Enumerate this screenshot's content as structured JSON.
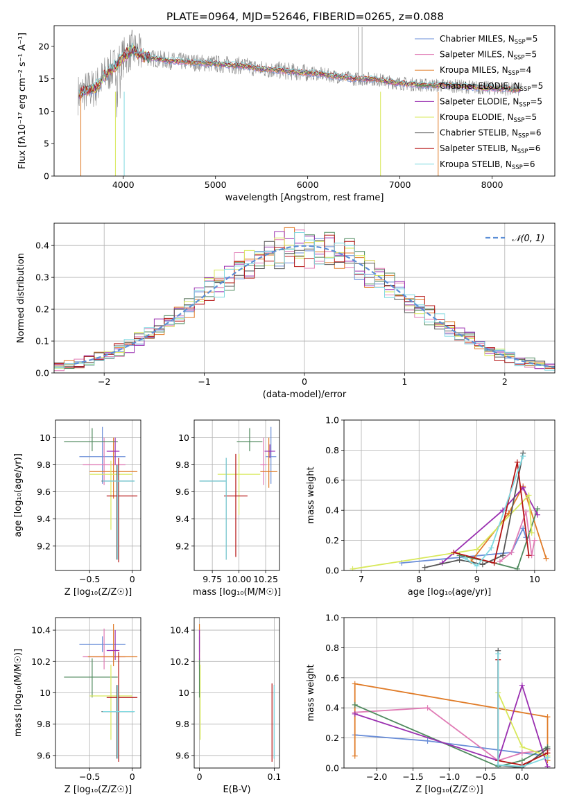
{
  "figure": {
    "title": "PLATE=0964, MJD=52646, FIBERID=0265, z=0.088"
  },
  "colors": {
    "Chabrier MILES": "#6a8ed8",
    "Salpeter MILES": "#e07bb5",
    "Kroupa MILES": "#e07b27",
    "Chabrier ELODIE": "#4f8a5e",
    "Salpeter ELODIE": "#9a2fb0",
    "Kroupa ELODIE": "#d8e85a",
    "Chabrier STELIB": "#555555",
    "Salpeter STELIB": "#b51414",
    "Kroupa STELIB": "#7fd8e0",
    "data": "#888888",
    "normal_curve": "#5b8ed6",
    "grid": "#b0b0b0"
  },
  "chart_data": [
    {
      "id": "spectrum",
      "type": "line",
      "title": "PLATE=0964, MJD=52646, FIBERID=0265, z=0.088",
      "xlabel": "wavelength [Angstrom, rest frame]",
      "ylabel": "Flux [fλ10⁻¹⁷ erg cm⁻² s⁻¹ A⁻¹]",
      "xlim": [
        3250,
        8680
      ],
      "ylim": [
        0,
        23.2
      ],
      "xticks": [
        4000,
        5000,
        6000,
        7000,
        8000
      ],
      "yticks": [
        0,
        5,
        10,
        15,
        20
      ],
      "grid": false,
      "legend_position": "top-right",
      "legend": [
        {
          "series": "Chabrier MILES",
          "label": "Chabrier MILES, N",
          "sub": "SSP",
          "tail": "=5"
        },
        {
          "series": "Salpeter MILES",
          "label": "Salpeter MILES, N",
          "sub": "SSP",
          "tail": "=5"
        },
        {
          "series": "Kroupa MILES",
          "label": "Kroupa MILES, N",
          "sub": "SSP",
          "tail": "=4"
        },
        {
          "series": "Chabrier ELODIE",
          "label": "Chabrier ELODIE, N",
          "sub": "SSP",
          "tail": "=5"
        },
        {
          "series": "Salpeter ELODIE",
          "label": "Salpeter ELODIE, N",
          "sub": "SSP",
          "tail": "=5"
        },
        {
          "series": "Kroupa ELODIE",
          "label": "Kroupa ELODIE, N",
          "sub": "SSP",
          "tail": "=5"
        },
        {
          "series": "Chabrier STELIB",
          "label": "Chabrier STELIB, N",
          "sub": "SSP",
          "tail": "=6"
        },
        {
          "series": "Salpeter STELIB",
          "label": "Salpeter STELIB, N",
          "sub": "SSP",
          "tail": "=6"
        },
        {
          "series": "Kroupa STELIB",
          "label": "Kroupa STELIB, N",
          "sub": "SSP",
          "tail": "=6"
        }
      ],
      "continuum_x": [
        3500,
        3600,
        3700,
        3800,
        3900,
        4000,
        4100,
        4200,
        4300,
        4500,
        4700,
        4900,
        5100,
        5300,
        5500,
        5700,
        5900,
        6100,
        6300,
        6500,
        6700,
        6900,
        7100,
        7300,
        7500,
        7700,
        7900,
        8100,
        8300
      ],
      "continuum_y": [
        12.5,
        13.2,
        13.6,
        15.5,
        16.8,
        18.3,
        19.5,
        18.6,
        18.2,
        17.8,
        17.6,
        17.4,
        17.2,
        17.0,
        16.5,
        16.3,
        16.0,
        15.8,
        15.4,
        15.0,
        15.0,
        14.5,
        14.2,
        14.0,
        14.0,
        13.8,
        13.6,
        13.5,
        13.3
      ]
    },
    {
      "id": "residual-histogram",
      "type": "bar",
      "xlabel": "(data-model)/error",
      "ylabel": "Normed distribution",
      "xlim": [
        -2.5,
        2.5
      ],
      "ylim": [
        0,
        0.47
      ],
      "xticks": [
        -2,
        -1,
        0,
        1,
        2
      ],
      "yticks": [
        0.0,
        0.1,
        0.2,
        0.3,
        0.4
      ],
      "grid": true,
      "legend_position": "top-right",
      "legend": [
        {
          "label": "𝒩(0, 1)"
        }
      ],
      "bin_width": 0.1,
      "x_start": -2.5
    },
    {
      "id": "age-vs-Z",
      "type": "scatter",
      "xlabel": "Z [log₁₀(Z/Z☉)]",
      "ylabel": "age [log₁₀(age/yr)]",
      "xlim": [
        -0.9,
        0.1
      ],
      "ylim": [
        9.02,
        10.13
      ],
      "xticks": [
        -0.5,
        0.0
      ],
      "yticks": [
        9.2,
        9.4,
        9.6,
        9.8,
        10.0
      ],
      "grid": true,
      "points": [
        {
          "series": "Chabrier MILES",
          "x": -0.35,
          "xerr": [
            0.27,
            0.27
          ],
          "y": 9.86,
          "yerr": [
            0.2,
            0.22
          ]
        },
        {
          "series": "Salpeter MILES",
          "x": -0.33,
          "xerr": [
            0.25,
            0.25
          ],
          "y": 9.8,
          "yerr": [
            0.15,
            0.2
          ]
        },
        {
          "series": "Kroupa MILES",
          "x": -0.22,
          "xerr": [
            0.28,
            0.28
          ],
          "y": 9.75,
          "yerr": [
            0.2,
            0.25
          ]
        },
        {
          "series": "Chabrier ELODIE",
          "x": -0.47,
          "xerr": [
            0.33,
            0.3
          ],
          "y": 9.97,
          "yerr": [
            0.07,
            0.1
          ]
        },
        {
          "series": "Salpeter ELODIE",
          "x": -0.2,
          "xerr": [
            0.1,
            0.05
          ],
          "y": 9.9,
          "yerr": [
            0.1,
            0.1
          ]
        },
        {
          "series": "Kroupa ELODIE",
          "x": -0.25,
          "xerr": [
            0.25,
            0.25
          ],
          "y": 9.73,
          "yerr": [
            0.41,
            0.1
          ]
        },
        {
          "series": "Chabrier STELIB",
          "x": -0.18,
          "xerr": [
            0.18,
            0.2
          ],
          "y": 9.68,
          "yerr": [
            0.58,
            0.12
          ]
        },
        {
          "series": "Salpeter STELIB",
          "x": -0.16,
          "xerr": [
            0.14,
            0.22
          ],
          "y": 9.57,
          "yerr": [
            0.49,
            0.28
          ]
        },
        {
          "series": "Kroupa STELIB",
          "x": -0.17,
          "xerr": [
            0.18,
            0.2
          ],
          "y": 9.68,
          "yerr": [
            0.58,
            0.12
          ]
        }
      ]
    },
    {
      "id": "age-vs-mass",
      "type": "scatter",
      "xlabel": "mass [log₁₀(M/M☉)]",
      "ylabel": "",
      "xlim": [
        9.58,
        10.38
      ],
      "ylim": [
        9.02,
        10.13
      ],
      "xticks": [
        9.75,
        10.0,
        10.25
      ],
      "xticklabels": [
        "9.75",
        "10.00",
        "10.25"
      ],
      "yticks": [
        9.2,
        9.4,
        9.6,
        9.8,
        10.0
      ],
      "grid": true,
      "points": [
        {
          "series": "Chabrier MILES",
          "x": 10.3,
          "xerr": [
            0.05,
            0.05
          ],
          "y": 9.86,
          "yerr": [
            0.2,
            0.22
          ]
        },
        {
          "series": "Salpeter MILES",
          "x": 10.23,
          "xerr": [
            0.03,
            0.03
          ],
          "y": 9.8,
          "yerr": [
            0.15,
            0.2
          ]
        },
        {
          "series": "Kroupa MILES",
          "x": 10.28,
          "xerr": [
            0.08,
            0.08
          ],
          "y": 9.75,
          "yerr": [
            0.12,
            0.25
          ]
        },
        {
          "series": "Chabrier ELODIE",
          "x": 10.1,
          "xerr": [
            0.12,
            0.12
          ],
          "y": 9.97,
          "yerr": [
            0.07,
            0.1
          ]
        },
        {
          "series": "Salpeter ELODIE",
          "x": 10.29,
          "xerr": [
            0.05,
            0.05
          ],
          "y": 9.9,
          "yerr": [
            0.05,
            0.05
          ]
        },
        {
          "series": "Kroupa ELODIE",
          "x": 10.0,
          "xerr": [
            0.2,
            0.2
          ],
          "y": 9.73,
          "yerr": [
            0.3,
            0.15
          ]
        },
        {
          "series": "Chabrier STELIB",
          "x": 9.88,
          "xerr": [
            0.25,
            0.0
          ],
          "y": 9.68,
          "yerr": [
            0.58,
            0.17
          ]
        },
        {
          "series": "Salpeter STELIB",
          "x": 9.97,
          "xerr": [
            0.11,
            0.11
          ],
          "y": 9.57,
          "yerr": [
            0.45,
            0.31
          ]
        },
        {
          "series": "Kroupa STELIB",
          "x": 9.88,
          "xerr": [
            0.25,
            0.0
          ],
          "y": 9.68,
          "yerr": [
            0.58,
            0.17
          ]
        }
      ]
    },
    {
      "id": "weight-vs-age",
      "type": "line",
      "xlabel": "age [log₁₀(age/yr)]",
      "ylabel": "mass weight",
      "xlim": [
        6.7,
        10.35
      ],
      "ylim": [
        0,
        1.0
      ],
      "xticks": [
        7,
        8,
        9,
        10
      ],
      "yticks": [
        0.0,
        0.2,
        0.4,
        0.6,
        0.8,
        1.0
      ],
      "grid": true,
      "series": [
        {
          "name": "Chabrier MILES",
          "x": [
            7.7,
            9.6,
            9.8,
            9.85
          ],
          "y": [
            0.05,
            0.12,
            0.28,
            0.22
          ]
        },
        {
          "name": "Salpeter MILES",
          "x": [
            9.4,
            9.6,
            9.85,
            9.95,
            10.0
          ],
          "y": [
            0.06,
            0.12,
            0.39,
            0.1,
            0.2
          ]
        },
        {
          "name": "Kroupa MILES",
          "x": [
            8.9,
            9.55,
            9.8,
            10.2
          ],
          "y": [
            0.06,
            0.38,
            0.56,
            0.08
          ]
        },
        {
          "name": "Chabrier ELODIE",
          "x": [
            8.7,
            9.3,
            9.7,
            10.05
          ],
          "y": [
            0.1,
            0.05,
            0.01,
            0.41
          ]
        },
        {
          "name": "Salpeter ELODIE",
          "x": [
            8.4,
            9.45,
            9.8,
            10.05
          ],
          "y": [
            0.05,
            0.4,
            0.55,
            0.37
          ]
        },
        {
          "name": "Kroupa ELODIE",
          "x": [
            6.85,
            9.0,
            9.9,
            9.95
          ],
          "y": [
            0.01,
            0.14,
            0.5,
            0.25
          ]
        },
        {
          "name": "Chabrier STELIB",
          "x": [
            8.1,
            8.7,
            9.1,
            9.45,
            9.8
          ],
          "y": [
            0.02,
            0.07,
            0.04,
            0.1,
            0.78
          ]
        },
        {
          "name": "Salpeter STELIB",
          "x": [
            8.6,
            9.3,
            9.7,
            9.9
          ],
          "y": [
            0.12,
            0.05,
            0.72,
            0.1
          ]
        },
        {
          "name": "Kroupa STELIB",
          "x": [
            8.8,
            9.0,
            9.25,
            9.8
          ],
          "y": [
            0.08,
            0.03,
            0.15,
            0.76
          ]
        }
      ]
    },
    {
      "id": "mass-vs-Z",
      "type": "scatter",
      "xlabel": "Z [log₁₀(Z/Z☉)]",
      "ylabel": "mass [log₁₀(M/M☉)]",
      "xlim": [
        -0.9,
        0.1
      ],
      "ylim": [
        9.52,
        10.48
      ],
      "xticks": [
        -0.5,
        0.0
      ],
      "yticks": [
        9.6,
        9.8,
        10.0,
        10.2,
        10.4
      ],
      "grid": true,
      "points": [
        {
          "series": "Chabrier MILES",
          "x": -0.35,
          "xerr": [
            0.27,
            0.27
          ],
          "y": 10.31,
          "yerr": [
            0.05,
            0.05
          ]
        },
        {
          "series": "Salpeter MILES",
          "x": -0.33,
          "xerr": [
            0.25,
            0.25
          ],
          "y": 10.23,
          "yerr": [
            0.08,
            0.18
          ]
        },
        {
          "series": "Kroupa MILES",
          "x": -0.22,
          "xerr": [
            0.3,
            0.28
          ],
          "y": 10.23,
          "yerr": [
            0.06,
            0.21
          ]
        },
        {
          "series": "Chabrier ELODIE",
          "x": -0.47,
          "xerr": [
            0.33,
            0.3
          ],
          "y": 10.1,
          "yerr": [
            0.13,
            0.12
          ]
        },
        {
          "series": "Salpeter ELODIE",
          "x": -0.2,
          "xerr": [
            0.1,
            0.05
          ],
          "y": 10.27,
          "yerr": [
            0.06,
            0.13
          ]
        },
        {
          "series": "Kroupa ELODIE",
          "x": -0.25,
          "xerr": [
            0.25,
            0.25
          ],
          "y": 9.98,
          "yerr": [
            0.28,
            0.2
          ]
        },
        {
          "series": "Chabrier STELIB",
          "x": -0.18,
          "xerr": [
            0.18,
            0.2
          ],
          "y": 9.88,
          "yerr": [
            0.3,
            0.17
          ]
        },
        {
          "series": "Salpeter STELIB",
          "x": -0.16,
          "xerr": [
            0.14,
            0.22
          ],
          "y": 9.97,
          "yerr": [
            0.41,
            0.29
          ]
        },
        {
          "series": "Kroupa STELIB",
          "x": -0.17,
          "xerr": [
            0.18,
            0.2
          ],
          "y": 9.88,
          "yerr": [
            0.3,
            0.17
          ]
        }
      ]
    },
    {
      "id": "mass-vs-ebv",
      "type": "scatter",
      "xlabel": "E(B-V)",
      "ylabel": "",
      "xlim": [
        -0.007,
        0.107
      ],
      "ylim": [
        9.52,
        10.48
      ],
      "xticks": [
        0.0,
        0.1
      ],
      "yticks": [
        9.6,
        9.8,
        10.0,
        10.2,
        10.4
      ],
      "grid": true,
      "points": [
        {
          "series": "Chabrier MILES",
          "x": 0.0,
          "y": 10.31,
          "yerr": [
            0.05,
            0.05
          ]
        },
        {
          "series": "Salpeter MILES",
          "x": 0.0,
          "y": 10.23,
          "yerr": [
            0.08,
            0.18
          ]
        },
        {
          "series": "Kroupa MILES",
          "x": 0.0,
          "y": 10.23,
          "yerr": [
            0.06,
            0.21
          ]
        },
        {
          "series": "Chabrier ELODIE",
          "x": 0.0,
          "y": 10.1,
          "yerr": [
            0.13,
            0.12
          ]
        },
        {
          "series": "Salpeter ELODIE",
          "x": 0.0,
          "y": 10.27,
          "yerr": [
            0.06,
            0.13
          ]
        },
        {
          "series": "Kroupa ELODIE",
          "x": 0.001,
          "y": 9.98,
          "yerr": [
            0.28,
            0.2
          ]
        },
        {
          "series": "Chabrier STELIB",
          "x": 0.1,
          "y": 9.88,
          "yerr": [
            0.3,
            0.17
          ]
        },
        {
          "series": "Salpeter STELIB",
          "x": 0.097,
          "y": 9.97,
          "yerr": [
            0.41,
            0.09
          ]
        },
        {
          "series": "Kroupa STELIB",
          "x": 0.1,
          "y": 9.88,
          "yerr": [
            0.3,
            0.17
          ]
        }
      ]
    },
    {
      "id": "weight-vs-Z",
      "type": "line",
      "xlabel": "Z [log₁₀(Z/Z☉)]",
      "ylabel": "mass weight",
      "xlim": [
        -2.45,
        0.45
      ],
      "ylim": [
        0,
        1.0
      ],
      "xticks": [
        -2.0,
        -1.5,
        -1.0,
        -0.5,
        0.0
      ],
      "xticklabels": [
        "−2.0",
        "−1.5",
        "−1.0",
        "−0.5",
        "0.0"
      ],
      "yticks": [
        0.0,
        0.2,
        0.4,
        0.6,
        0.8,
        1.0
      ],
      "grid": true,
      "series": [
        {
          "name": "Chabrier MILES",
          "x": [
            -2.3,
            -1.3,
            0.0,
            0.35
          ],
          "y": [
            0.22,
            0.18,
            0.1,
            0.08
          ]
        },
        {
          "name": "Salpeter MILES",
          "x": [
            -2.3,
            -1.3,
            -0.33,
            0.0,
            0.35
          ],
          "y": [
            0.37,
            0.4,
            0.05,
            0.1,
            0.12
          ]
        },
        {
          "name": "Kroupa MILES",
          "x": [
            -2.3,
            -2.3,
            0.35,
            0.35
          ],
          "y": [
            0.08,
            0.56,
            0.34,
            0.05
          ]
        },
        {
          "name": "Chabrier ELODIE",
          "x": [
            -2.3,
            -0.33,
            0.0,
            0.35
          ],
          "y": [
            0.42,
            0.01,
            0.05,
            0.14
          ]
        },
        {
          "name": "Salpeter ELODIE",
          "x": [
            -2.3,
            -0.33,
            0.0,
            0.35
          ],
          "y": [
            0.36,
            0.05,
            0.55,
            0.01
          ]
        },
        {
          "name": "Kroupa ELODIE",
          "x": [
            -0.33,
            0.0,
            0.35
          ],
          "y": [
            0.5,
            0.14,
            0.08
          ]
        },
        {
          "name": "Chabrier STELIB",
          "x": [
            -0.33,
            -0.33,
            0.0,
            0.35
          ],
          "y": [
            0.78,
            0.02,
            0.0,
            0.13
          ]
        },
        {
          "name": "Salpeter STELIB",
          "x": [
            -0.33,
            -0.33,
            0.0,
            0.35
          ],
          "y": [
            0.72,
            0.05,
            0.02,
            0.1
          ]
        },
        {
          "name": "Kroupa STELIB",
          "x": [
            -0.33,
            -0.33,
            0.0,
            0.35
          ],
          "y": [
            0.76,
            0.02,
            0.01,
            0.07
          ]
        }
      ]
    }
  ]
}
